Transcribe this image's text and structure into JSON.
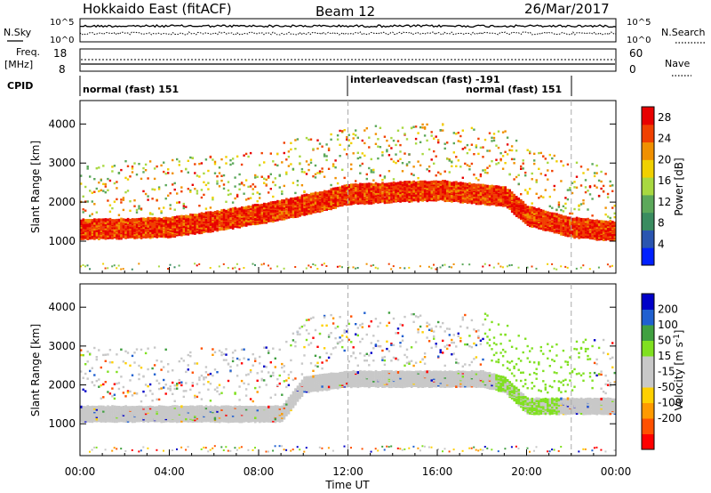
{
  "header": {
    "title": "Hokkaido East (fitACF)",
    "beam": "Beam 12",
    "date": "26/Mar/2017"
  },
  "summary_panels": {
    "nsky_label": "N.Sky",
    "nsearch_label": "N.Search",
    "noise_ticks": [
      "10^5",
      "10^0"
    ],
    "freq_label_1": "Freq.",
    "freq_label_2": "[MHz]",
    "freq_ticks": [
      "18",
      "8"
    ],
    "nave_label": "Nave",
    "nave_ticks": [
      "60",
      "0"
    ],
    "cpid_label": "CPID",
    "cpid_segments": [
      "normal (fast) 151",
      "interleavedscan (fast) -191",
      "normal (fast) 151"
    ]
  },
  "colors": {
    "power": [
      "#0020ff",
      "#2a55b0",
      "#3a8c60",
      "#5ca85a",
      "#a8d840",
      "#f0d000",
      "#f09000",
      "#f04000",
      "#e80000"
    ],
    "velocity": [
      "#ff0000",
      "#ff5000",
      "#ff9a00",
      "#ffd000",
      "#c8c8c8",
      "#c8c8c8",
      "#80e020",
      "#40a040",
      "#2060d0",
      "#0000c8"
    ]
  },
  "chart_data": [
    {
      "type": "heatmap",
      "name": "Power",
      "ylabel": "Slant Range [km]",
      "xlabel": "Time UT",
      "x_ticks": [
        "00:00",
        "04:00",
        "08:00",
        "12:00",
        "16:00",
        "20:00",
        "00:00"
      ],
      "y_ticks": [
        1000,
        2000,
        3000,
        4000
      ],
      "ylim": [
        180,
        4600
      ],
      "xlim_hours": [
        0,
        24
      ],
      "colorbar_label": "Power [dB]",
      "colorbar_ticks": [
        "4",
        "8",
        "12",
        "16",
        "20",
        "24",
        "28"
      ],
      "colorbar_range": [
        0,
        30
      ],
      "main_band_km": [
        [
          0,
          1350
        ],
        [
          4,
          1400
        ],
        [
          7,
          1650
        ],
        [
          9,
          1850
        ],
        [
          11,
          2100
        ],
        [
          12,
          2250
        ],
        [
          16,
          2350
        ],
        [
          19,
          2200
        ],
        [
          20,
          1700
        ],
        [
          22,
          1400
        ],
        [
          24,
          1300
        ]
      ],
      "band_halfwidth_km": 250
    },
    {
      "type": "heatmap",
      "name": "Velocity",
      "ylabel": "Slant Range [km]",
      "xlabel": "Time UT",
      "x_ticks": [
        "00:00",
        "04:00",
        "08:00",
        "12:00",
        "16:00",
        "20:00",
        "00:00"
      ],
      "y_ticks": [
        1000,
        2000,
        3000,
        4000
      ],
      "ylim": [
        180,
        4600
      ],
      "xlim_hours": [
        0,
        24
      ],
      "colorbar_label": "Velocity [m s^-1]",
      "colorbar_ticks": [
        "200",
        "100",
        "50",
        "15",
        "-15",
        "-50",
        "-100",
        "-200"
      ],
      "main_band_km": [
        [
          0,
          1300
        ],
        [
          9,
          1300
        ],
        [
          10,
          2050
        ],
        [
          12,
          2200
        ],
        [
          18,
          2200
        ],
        [
          19,
          2050
        ],
        [
          20,
          1500
        ],
        [
          24,
          1500
        ]
      ]
    }
  ],
  "axis": {
    "xlabel": "Time UT"
  }
}
